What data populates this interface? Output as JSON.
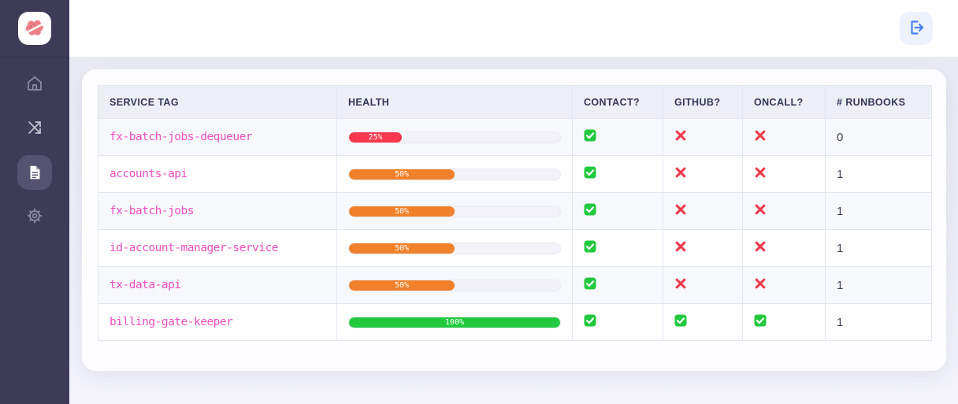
{
  "sidebar": {
    "logo_icon": "brain-icon",
    "items": [
      {
        "id": "home",
        "icon": "home-icon",
        "active": false
      },
      {
        "id": "shuffle",
        "icon": "shuffle-icon",
        "active": false
      },
      {
        "id": "runbooks",
        "icon": "document-icon",
        "active": true
      },
      {
        "id": "settings",
        "icon": "gear-icon",
        "active": false
      }
    ]
  },
  "header": {
    "logout_icon": "logout-icon"
  },
  "colors": {
    "health_red": "#f8384e",
    "health_orange": "#f0812a",
    "health_green": "#22c93e",
    "check_green": "#22c93e",
    "cross_red": "#ee3a4d",
    "tag_pink": "#ef4fc0",
    "accent_blue": "#4a80f5"
  },
  "table": {
    "columns": [
      "Service Tag",
      "Health",
      "Contact?",
      "GitHub?",
      "Oncall?",
      "# Runbooks"
    ],
    "rows": [
      {
        "service_tag": "fx-batch-jobs-dequeuer",
        "health_pct": 25,
        "health_label": "25%",
        "health_color": "#f8384e",
        "contact": true,
        "github": false,
        "oncall": false,
        "runbooks": "0"
      },
      {
        "service_tag": "accounts-api",
        "health_pct": 50,
        "health_label": "50%",
        "health_color": "#f0812a",
        "contact": true,
        "github": false,
        "oncall": false,
        "runbooks": "1"
      },
      {
        "service_tag": "fx-batch-jobs",
        "health_pct": 50,
        "health_label": "50%",
        "health_color": "#f0812a",
        "contact": true,
        "github": false,
        "oncall": false,
        "runbooks": "1"
      },
      {
        "service_tag": "id-account-manager-service",
        "health_pct": 50,
        "health_label": "50%",
        "health_color": "#f0812a",
        "contact": true,
        "github": false,
        "oncall": false,
        "runbooks": "1"
      },
      {
        "service_tag": "tx-data-api",
        "health_pct": 50,
        "health_label": "50%",
        "health_color": "#f0812a",
        "contact": true,
        "github": false,
        "oncall": false,
        "runbooks": "1"
      },
      {
        "service_tag": "billing-gate-keeper",
        "health_pct": 100,
        "health_label": "100%",
        "health_color": "#22c93e",
        "contact": true,
        "github": true,
        "oncall": true,
        "runbooks": "1"
      }
    ]
  }
}
